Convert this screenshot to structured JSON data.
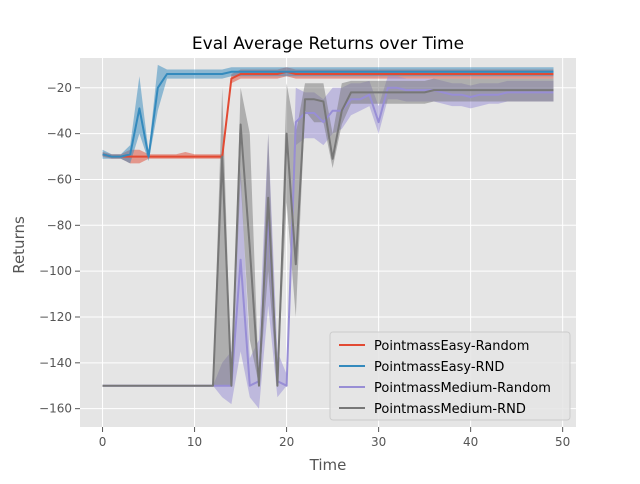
{
  "chart_data": {
    "type": "line",
    "title": "Eval Average Returns over Time",
    "xlabel": "Time",
    "ylabel": "Returns",
    "xlim": [
      -2.45,
      51.45
    ],
    "ylim": [
      -168,
      -7
    ],
    "xticks": [
      0,
      10,
      20,
      30,
      40,
      50
    ],
    "yticks": [
      -20,
      -40,
      -60,
      -80,
      -100,
      -120,
      -140,
      -160
    ],
    "grid": true,
    "background": "#e5e5e5",
    "legend": {
      "placement": "lower right"
    },
    "x": [
      0,
      1,
      2,
      3,
      4,
      5,
      6,
      7,
      8,
      9,
      10,
      11,
      12,
      13,
      14,
      15,
      16,
      17,
      18,
      19,
      20,
      21,
      22,
      23,
      24,
      25,
      26,
      27,
      28,
      29,
      30,
      31,
      32,
      33,
      34,
      35,
      36,
      37,
      38,
      39,
      40,
      41,
      42,
      43,
      44,
      45,
      46,
      47,
      48,
      49
    ],
    "series": [
      {
        "name": "PointmassEasy-Random",
        "color": "#E24A33",
        "values": [
          -49,
          -50,
          -50,
          -50,
          -50,
          -50,
          -50,
          -50,
          -50,
          -50,
          -50,
          -50,
          -50,
          -50,
          -16,
          -14,
          -14,
          -14,
          -14,
          -14,
          -13,
          -14,
          -14,
          -14,
          -14,
          -14,
          -14,
          -14,
          -14,
          -14,
          -14,
          -14,
          -14,
          -14,
          -14,
          -14,
          -14,
          -14,
          -14,
          -14,
          -14,
          -14,
          -14,
          -14,
          -14,
          -14,
          -14,
          -14,
          -14,
          -14
        ],
        "lower": [
          -50,
          -51,
          -51,
          -53,
          -53,
          -51,
          -51,
          -51,
          -51,
          -51,
          -51,
          -51,
          -51,
          -51,
          -18,
          -16,
          -16,
          -16,
          -16,
          -16,
          -15,
          -16,
          -16,
          -16,
          -16,
          -16,
          -16,
          -16,
          -16,
          -16,
          -16,
          -16,
          -16,
          -16,
          -16,
          -16,
          -16,
          -16,
          -16,
          -16,
          -16,
          -16,
          -16,
          -16,
          -16,
          -16,
          -16,
          -16,
          -16,
          -16
        ],
        "upper": [
          -48,
          -49,
          -49,
          -47,
          -47,
          -49,
          -49,
          -49,
          -49,
          -48,
          -49,
          -49,
          -49,
          -49,
          -14,
          -12,
          -12,
          -12,
          -12,
          -12,
          -11,
          -12,
          -12,
          -12,
          -12,
          -12,
          -12,
          -12,
          -12,
          -12,
          -12,
          -12,
          -12,
          -12,
          -12,
          -12,
          -12,
          -12,
          -12,
          -12,
          -12,
          -12,
          -12,
          -12,
          -12,
          -12,
          -12,
          -12,
          -12,
          -12
        ]
      },
      {
        "name": "PointmassEasy-RND",
        "color": "#348ABD",
        "values": [
          -49,
          -50,
          -50,
          -49,
          -29,
          -50,
          -20,
          -14,
          -14,
          -14,
          -14,
          -14,
          -14,
          -14,
          -13,
          -13,
          -13,
          -13,
          -13,
          -13,
          -13,
          -13,
          -13,
          -13,
          -13,
          -13,
          -13,
          -13,
          -13,
          -13,
          -13,
          -13,
          -13,
          -13,
          -13,
          -13,
          -13,
          -13,
          -13,
          -13,
          -13,
          -13,
          -13,
          -13,
          -13,
          -13,
          -13,
          -13,
          -13,
          -13
        ],
        "lower": [
          -51,
          -51,
          -51,
          -53,
          -40,
          -52,
          -30,
          -16,
          -16,
          -16,
          -16,
          -16,
          -16,
          -16,
          -15,
          -15,
          -15,
          -15,
          -15,
          -15,
          -15,
          -15,
          -15,
          -15,
          -15,
          -15,
          -15,
          -15,
          -15,
          -15,
          -15,
          -15,
          -15,
          -15,
          -15,
          -15,
          -15,
          -15,
          -15,
          -15,
          -15,
          -15,
          -15,
          -15,
          -15,
          -15,
          -15,
          -15,
          -15,
          -15
        ],
        "upper": [
          -47,
          -49,
          -49,
          -45,
          -15,
          -48,
          -10,
          -12,
          -12,
          -12,
          -12,
          -12,
          -12,
          -12,
          -11,
          -11,
          -11,
          -11,
          -11,
          -11,
          -11,
          -11,
          -11,
          -11,
          -11,
          -11,
          -11,
          -11,
          -11,
          -11,
          -11,
          -11,
          -11,
          -11,
          -11,
          -11,
          -11,
          -11,
          -11,
          -11,
          -11,
          -11,
          -11,
          -11,
          -11,
          -11,
          -11,
          -11,
          -11,
          -11
        ]
      },
      {
        "name": "PointmassMedium-Random",
        "color": "#988ED5",
        "values": [
          -150,
          -150,
          -150,
          -150,
          -150,
          -150,
          -150,
          -150,
          -150,
          -150,
          -150,
          -150,
          -150,
          -150,
          -150,
          -95,
          -150,
          -148,
          -75,
          -148,
          -150,
          -35,
          -31,
          -31,
          -35,
          -30,
          -30,
          -25,
          -25,
          -23,
          -35,
          -20,
          -20,
          -21,
          -21,
          -21,
          -21,
          -22,
          -23,
          -23,
          -24,
          -23,
          -23,
          -23,
          -22,
          -22,
          -22,
          -22,
          -22,
          -22
        ],
        "lower": [
          -150,
          -150,
          -150,
          -150,
          -150,
          -150,
          -150,
          -150,
          -150,
          -150,
          -150,
          -150,
          -150,
          -155,
          -158,
          -135,
          -155,
          -160,
          -115,
          -155,
          -150,
          -45,
          -42,
          -42,
          -45,
          -40,
          -38,
          -32,
          -30,
          -28,
          -40,
          -25,
          -25,
          -26,
          -26,
          -26,
          -26,
          -27,
          -28,
          -28,
          -29,
          -28,
          -27,
          -27,
          -26,
          -26,
          -26,
          -26,
          -26,
          -26
        ],
        "upper": [
          -150,
          -150,
          -150,
          -150,
          -150,
          -150,
          -150,
          -150,
          -150,
          -150,
          -150,
          -150,
          -150,
          -140,
          -135,
          -55,
          -138,
          -130,
          -40,
          -135,
          -145,
          -20,
          -22,
          -22,
          -25,
          -20,
          -20,
          -18,
          -18,
          -17,
          -28,
          -15,
          -15,
          -16,
          -16,
          -16,
          -16,
          -17,
          -18,
          -18,
          -19,
          -18,
          -18,
          -18,
          -17,
          -17,
          -17,
          -17,
          -17,
          -17
        ]
      },
      {
        "name": "PointmassMedium-RND",
        "color": "#777777",
        "values": [
          -150,
          -150,
          -150,
          -150,
          -150,
          -150,
          -150,
          -150,
          -150,
          -150,
          -150,
          -150,
          -150,
          -50,
          -150,
          -36,
          -90,
          -150,
          -68,
          -150,
          -40,
          -97,
          -25,
          -25,
          -26,
          -51,
          -30,
          -22,
          -22,
          -22,
          -22,
          -22,
          -22,
          -22,
          -22,
          -22,
          -21,
          -21,
          -21,
          -21,
          -21,
          -21,
          -21,
          -21,
          -21,
          -21,
          -21,
          -21,
          -21,
          -21
        ],
        "lower": [
          -150,
          -150,
          -150,
          -150,
          -150,
          -150,
          -150,
          -150,
          -150,
          -150,
          -150,
          -150,
          -150,
          -150,
          -150,
          -60,
          -130,
          -150,
          -100,
          -150,
          -70,
          -120,
          -30,
          -35,
          -35,
          -55,
          -36,
          -27,
          -27,
          -27,
          -27,
          -27,
          -27,
          -27,
          -27,
          -27,
          -26,
          -26,
          -26,
          -26,
          -26,
          -26,
          -26,
          -26,
          -26,
          -26,
          -26,
          -26,
          -26,
          -26
        ],
        "upper": [
          -150,
          -150,
          -150,
          -150,
          -150,
          -150,
          -150,
          -150,
          -150,
          -150,
          -150,
          -150,
          -150,
          -20,
          -150,
          -20,
          -40,
          -150,
          -40,
          -150,
          -18,
          -40,
          -18,
          -18,
          -18,
          -40,
          -18,
          -17,
          -17,
          -17,
          -17,
          -17,
          -17,
          -17,
          -17,
          -17,
          -16,
          -16,
          -16,
          -16,
          -16,
          -16,
          -16,
          -16,
          -16,
          -16,
          -16,
          -16,
          -16,
          -16
        ]
      }
    ]
  }
}
